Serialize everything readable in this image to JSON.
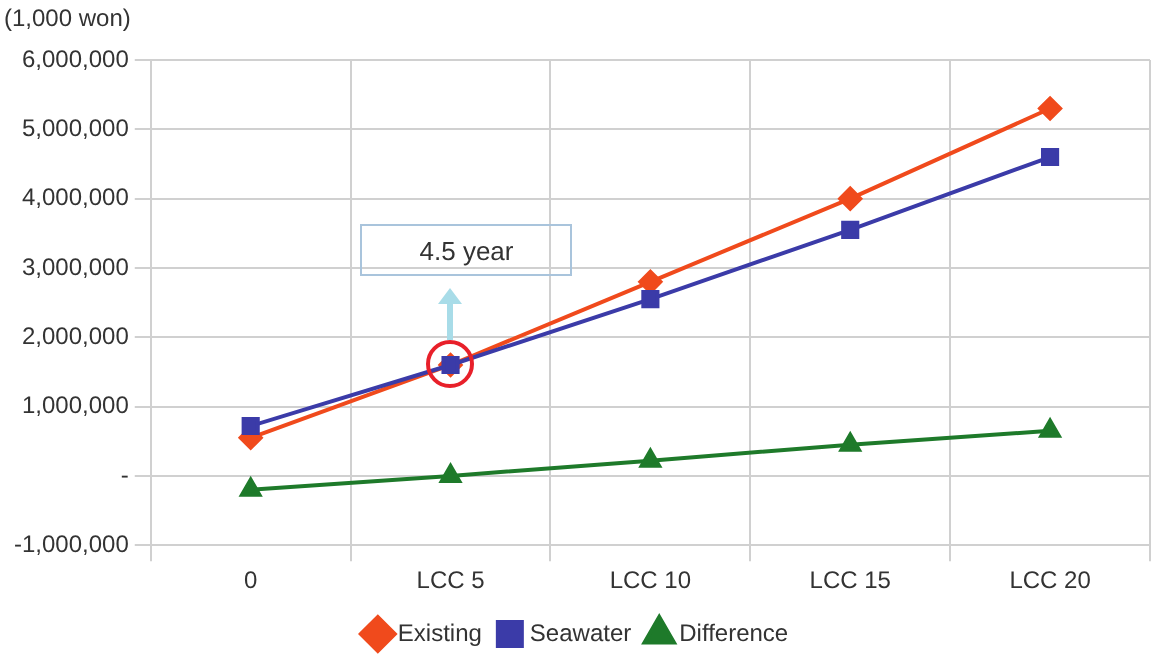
{
  "chart_data": {
    "type": "line",
    "ylabel": "(1,000 won)",
    "categories": [
      "0",
      "LCC 5",
      "LCC 10",
      "LCC 15",
      "LCC 20"
    ],
    "series": [
      {
        "name": "Existing",
        "color": "#f04a1c",
        "marker": "diamond",
        "values": [
          550000,
          1600000,
          2800000,
          4000000,
          5300000
        ]
      },
      {
        "name": "Seawater",
        "color": "#3b3ba8",
        "marker": "square",
        "values": [
          720000,
          1600000,
          2550000,
          3550000,
          4600000
        ]
      },
      {
        "name": "Difference",
        "color": "#1e7a2a",
        "marker": "triangle",
        "values": [
          -200000,
          0,
          220000,
          450000,
          650000
        ]
      }
    ],
    "ylim": [
      -1000000,
      6000000
    ],
    "yticks": [
      {
        "value": -1000000,
        "label": "-1,000,000"
      },
      {
        "value": 0,
        "label": "-"
      },
      {
        "value": 1000000,
        "label": "1,000,000"
      },
      {
        "value": 2000000,
        "label": "2,000,000"
      },
      {
        "value": 3000000,
        "label": "3,000,000"
      },
      {
        "value": 4000000,
        "label": "4,000,000"
      },
      {
        "value": 5000000,
        "label": "5,000,000"
      },
      {
        "value": 6000000,
        "label": "6,000,000"
      }
    ],
    "annotations": [
      "4.5 year"
    ],
    "grid": true,
    "legend": "bottom"
  }
}
